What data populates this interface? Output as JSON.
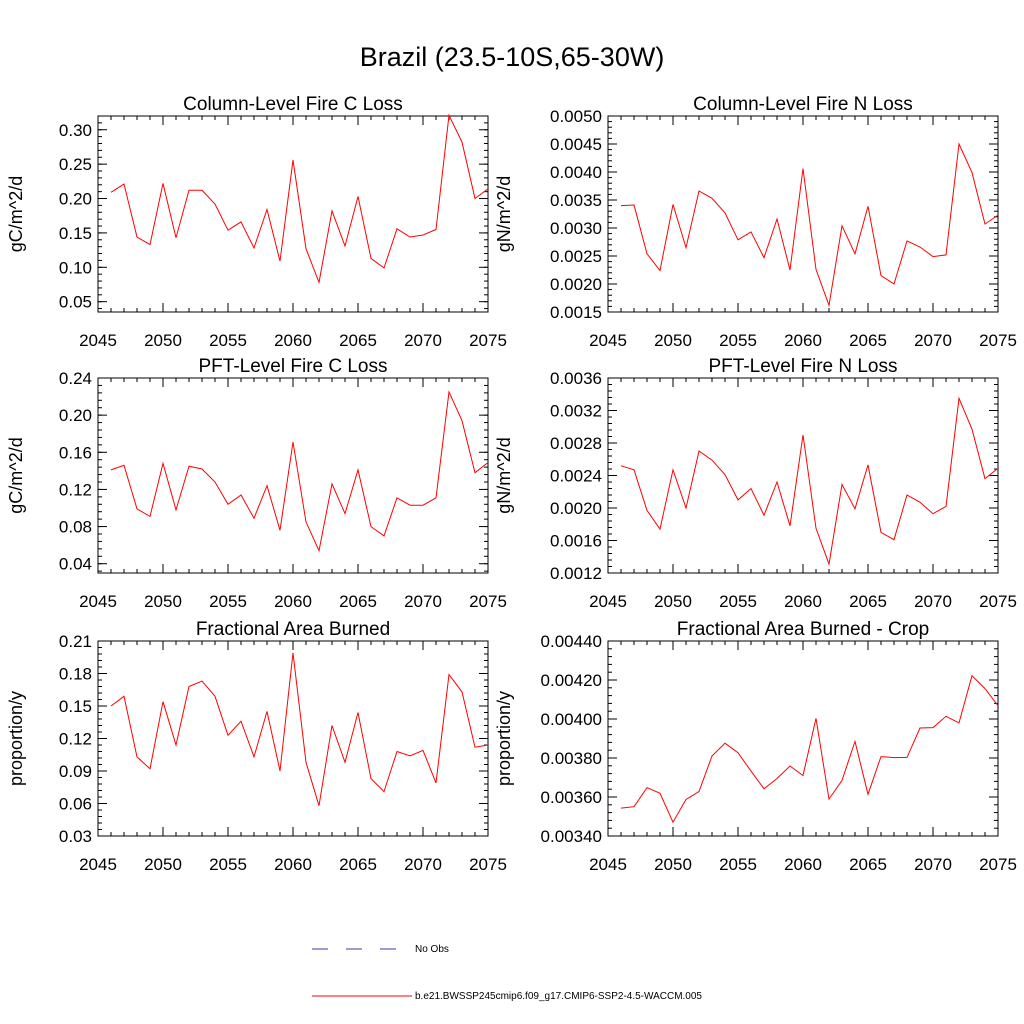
{
  "page": {
    "title": "Brazil (23.5-10S,65-30W)"
  },
  "colors": {
    "model_line": "#ff0000",
    "obs_line": "#3a3aa0",
    "axis": "#000000"
  },
  "legend": {
    "obs_label": "No Obs",
    "model_label": "b.e21.BWSSP245cmip6.f09_g17.CMIP6-SSP2-4.5-WACCM.005"
  },
  "chart_data": [
    {
      "type": "line",
      "title": "Column-Level Fire C Loss",
      "ylabel": "gC/m^2/d",
      "xlim": [
        2045,
        2075
      ],
      "ylim": [
        0.035,
        0.32
      ],
      "x_ticks": [
        "2045",
        "2050",
        "2055",
        "2060",
        "2065",
        "2070",
        "2075"
      ],
      "y_ticks": [
        "0.05",
        "0.10",
        "0.15",
        "0.20",
        "0.25",
        "0.30"
      ],
      "x": [
        2046,
        2047,
        2048,
        2049,
        2050,
        2051,
        2052,
        2053,
        2054,
        2055,
        2056,
        2057,
        2058,
        2059,
        2060,
        2061,
        2062,
        2063,
        2064,
        2065,
        2066,
        2067,
        2068,
        2069,
        2070,
        2071,
        2072,
        2073,
        2074,
        2075
      ],
      "values": [
        0.209,
        0.221,
        0.144,
        0.133,
        0.222,
        0.143,
        0.212,
        0.212,
        0.192,
        0.154,
        0.166,
        0.128,
        0.184,
        0.109,
        0.256,
        0.127,
        0.078,
        0.182,
        0.131,
        0.203,
        0.113,
        0.099,
        0.156,
        0.144,
        0.147,
        0.155,
        0.321,
        0.282,
        0.2,
        0.214
      ]
    },
    {
      "type": "line",
      "title": "Column-Level Fire N Loss",
      "ylabel": "gN/m^2/d",
      "xlim": [
        2045,
        2075
      ],
      "ylim": [
        0.0015,
        0.005
      ],
      "x_ticks": [
        "2045",
        "2050",
        "2055",
        "2060",
        "2065",
        "2070",
        "2075"
      ],
      "y_ticks": [
        "0.0015",
        "0.0020",
        "0.0025",
        "0.0030",
        "0.0035",
        "0.0040",
        "0.0045",
        "0.0050"
      ],
      "x": [
        2046,
        2047,
        2048,
        2049,
        2050,
        2051,
        2052,
        2053,
        2054,
        2055,
        2056,
        2057,
        2058,
        2059,
        2060,
        2061,
        2062,
        2063,
        2064,
        2065,
        2066,
        2067,
        2068,
        2069,
        2070,
        2071,
        2072,
        2073,
        2074,
        2075
      ],
      "values": [
        0.0034,
        0.00341,
        0.00254,
        0.00224,
        0.00342,
        0.00265,
        0.00366,
        0.00353,
        0.00327,
        0.00279,
        0.00293,
        0.00247,
        0.00316,
        0.00225,
        0.00406,
        0.00226,
        0.00162,
        0.00304,
        0.00254,
        0.00339,
        0.00215,
        0.002,
        0.00277,
        0.00266,
        0.00249,
        0.00252,
        0.0045,
        0.00399,
        0.00307,
        0.00323
      ]
    },
    {
      "type": "line",
      "title": "PFT-Level Fire C Loss",
      "ylabel": "gC/m^2/d",
      "xlim": [
        2045,
        2075
      ],
      "ylim": [
        0.03,
        0.24
      ],
      "x_ticks": [
        "2045",
        "2050",
        "2055",
        "2060",
        "2065",
        "2070",
        "2075"
      ],
      "y_ticks": [
        "0.04",
        "0.08",
        "0.12",
        "0.16",
        "0.20",
        "0.24"
      ],
      "x": [
        2046,
        2047,
        2048,
        2049,
        2050,
        2051,
        2052,
        2053,
        2054,
        2055,
        2056,
        2057,
        2058,
        2059,
        2060,
        2061,
        2062,
        2063,
        2064,
        2065,
        2066,
        2067,
        2068,
        2069,
        2070,
        2071,
        2072,
        2073,
        2074,
        2075
      ],
      "values": [
        0.141,
        0.146,
        0.099,
        0.091,
        0.148,
        0.098,
        0.145,
        0.142,
        0.128,
        0.104,
        0.114,
        0.089,
        0.124,
        0.076,
        0.171,
        0.085,
        0.054,
        0.126,
        0.094,
        0.141,
        0.08,
        0.07,
        0.111,
        0.103,
        0.103,
        0.111,
        0.225,
        0.194,
        0.138,
        0.149
      ]
    },
    {
      "type": "line",
      "title": "PFT-Level Fire N Loss",
      "ylabel": "gN/m^2/d",
      "xlim": [
        2045,
        2075
      ],
      "ylim": [
        0.0012,
        0.0036
      ],
      "x_ticks": [
        "2045",
        "2050",
        "2055",
        "2060",
        "2065",
        "2070",
        "2075"
      ],
      "y_ticks": [
        "0.0012",
        "0.0016",
        "0.0020",
        "0.0024",
        "0.0028",
        "0.0032",
        "0.0036"
      ],
      "x": [
        2046,
        2047,
        2048,
        2049,
        2050,
        2051,
        2052,
        2053,
        2054,
        2055,
        2056,
        2057,
        2058,
        2059,
        2060,
        2061,
        2062,
        2063,
        2064,
        2065,
        2066,
        2067,
        2068,
        2069,
        2070,
        2071,
        2072,
        2073,
        2074,
        2075
      ],
      "values": [
        0.00252,
        0.00247,
        0.00197,
        0.00174,
        0.00247,
        0.002,
        0.0027,
        0.00259,
        0.00241,
        0.0021,
        0.00224,
        0.00191,
        0.00232,
        0.00178,
        0.0029,
        0.00175,
        0.00131,
        0.00229,
        0.00199,
        0.00253,
        0.0017,
        0.00161,
        0.00216,
        0.00207,
        0.00193,
        0.00202,
        0.00335,
        0.00297,
        0.00236,
        0.00249
      ]
    },
    {
      "type": "line",
      "title": "Fractional Area Burned",
      "ylabel": "proportion/y",
      "xlim": [
        2045,
        2075
      ],
      "ylim": [
        0.03,
        0.21
      ],
      "x_ticks": [
        "2045",
        "2050",
        "2055",
        "2060",
        "2065",
        "2070",
        "2075"
      ],
      "y_ticks": [
        "0.03",
        "0.06",
        "0.09",
        "0.12",
        "0.15",
        "0.18",
        "0.21"
      ],
      "x": [
        2046,
        2047,
        2048,
        2049,
        2050,
        2051,
        2052,
        2053,
        2054,
        2055,
        2056,
        2057,
        2058,
        2059,
        2060,
        2061,
        2062,
        2063,
        2064,
        2065,
        2066,
        2067,
        2068,
        2069,
        2070,
        2071,
        2072,
        2073,
        2074,
        2075
      ],
      "values": [
        0.15,
        0.159,
        0.103,
        0.092,
        0.154,
        0.114,
        0.168,
        0.173,
        0.159,
        0.123,
        0.136,
        0.103,
        0.145,
        0.09,
        0.199,
        0.098,
        0.058,
        0.132,
        0.098,
        0.144,
        0.083,
        0.071,
        0.108,
        0.104,
        0.109,
        0.079,
        0.179,
        0.163,
        0.112,
        0.114
      ]
    },
    {
      "type": "line",
      "title": "Fractional Area Burned - Crop",
      "ylabel": "proportion/y",
      "xlim": [
        2045,
        2075
      ],
      "ylim": [
        0.0034,
        0.0044
      ],
      "x_ticks": [
        "2045",
        "2050",
        "2055",
        "2060",
        "2065",
        "2070",
        "2075"
      ],
      "y_ticks": [
        "0.00340",
        "0.00360",
        "0.00380",
        "0.00400",
        "0.00420",
        "0.00440"
      ],
      "x": [
        2046,
        2047,
        2048,
        2049,
        2050,
        2051,
        2052,
        2053,
        2054,
        2055,
        2056,
        2057,
        2058,
        2059,
        2060,
        2061,
        2062,
        2063,
        2064,
        2065,
        2066,
        2067,
        2068,
        2069,
        2070,
        2071,
        2072,
        2073,
        2074,
        2075
      ],
      "values": [
        0.003543,
        0.00355,
        0.003648,
        0.003619,
        0.003471,
        0.003587,
        0.003628,
        0.00381,
        0.003876,
        0.003827,
        0.003733,
        0.003642,
        0.003695,
        0.003759,
        0.00371,
        0.004003,
        0.003589,
        0.003685,
        0.003885,
        0.003614,
        0.003807,
        0.003802,
        0.003803,
        0.003954,
        0.003956,
        0.004014,
        0.00398,
        0.004222,
        0.004156,
        0.004068
      ]
    }
  ]
}
